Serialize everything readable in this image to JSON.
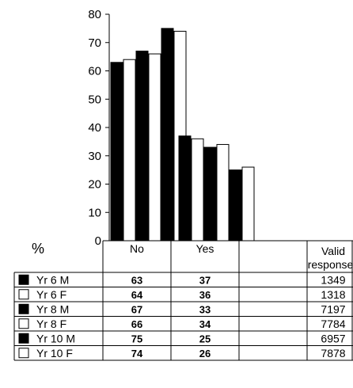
{
  "chart_data": {
    "type": "bar",
    "categories": [
      "No",
      "Yes"
    ],
    "y_unit_label": "%",
    "ylim": [
      0,
      80
    ],
    "yticks": [
      0,
      10,
      20,
      30,
      40,
      50,
      60,
      70,
      80
    ],
    "series": [
      {
        "name": "Yr 6 M",
        "fill": "#000000",
        "values": [
          63,
          37
        ],
        "valid_responses": "1349"
      },
      {
        "name": "Yr 6 F",
        "fill": "#ffffff",
        "values": [
          64,
          36
        ],
        "valid_responses": "1318"
      },
      {
        "name": "Yr 8 M",
        "fill": "#000000",
        "values": [
          67,
          33
        ],
        "valid_responses": "7197"
      },
      {
        "name": "Yr 8 F",
        "fill": "#ffffff",
        "values": [
          66,
          34
        ],
        "valid_responses": "7784"
      },
      {
        "name": "Yr 10 M",
        "fill": "#000000",
        "values": [
          75,
          25
        ],
        "valid_responses": "6957"
      },
      {
        "name": "Yr 10 F",
        "fill": "#ffffff",
        "values": [
          74,
          26
        ],
        "valid_responses": "7878"
      }
    ],
    "valid_header": [
      "Valid",
      "responses"
    ],
    "grid": false,
    "legend": "table-left"
  }
}
